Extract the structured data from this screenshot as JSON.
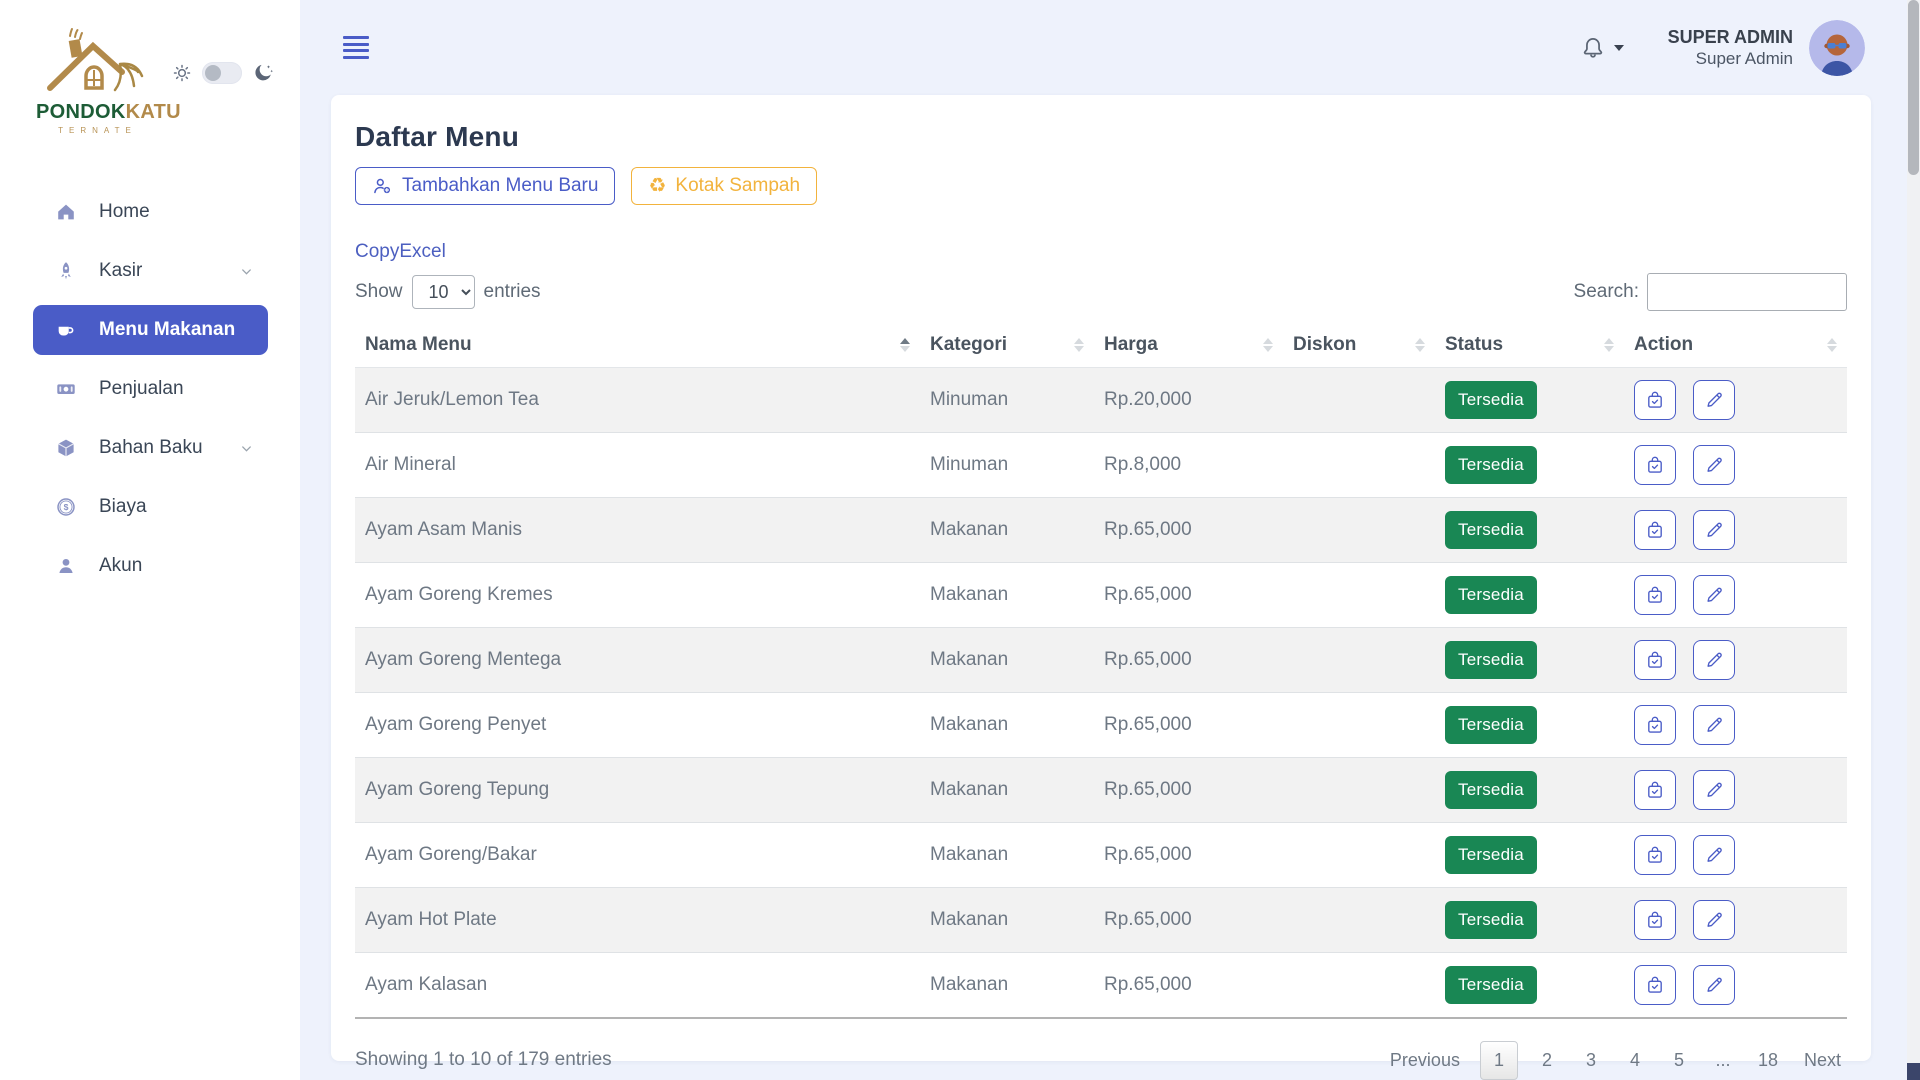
{
  "colors": {
    "accent_indigo": "#4a5cc7",
    "amber": "#f2b33d",
    "badge_green": "#198754",
    "logo_green": "#1d5c36",
    "logo_gold": "#b28a4a",
    "page_bg": "#eef2fc"
  },
  "sidebar": {
    "logo_text_primary": "PONDOK",
    "logo_text_secondary": "KATU",
    "logo_subtext": "TERNATE",
    "items": [
      {
        "label": "Home"
      },
      {
        "label": "Kasir"
      },
      {
        "label": "Menu Makanan"
      },
      {
        "label": "Penjualan"
      },
      {
        "label": "Bahan Baku"
      },
      {
        "label": "Biaya"
      },
      {
        "label": "Akun"
      }
    ]
  },
  "topbar": {
    "user_role": "SUPER ADMIN",
    "user_name": "Super Admin"
  },
  "content": {
    "title": "Daftar Menu",
    "add_button": "Tambahkan Menu Baru",
    "trash_button": "Kotak Sampah",
    "copy_link": "Copy",
    "excel_link": "Excel",
    "show_label": "Show",
    "page_length": "10",
    "entries_label": "entries",
    "search_label": "Search:",
    "search_value": ""
  },
  "table": {
    "headers": [
      "Nama Menu",
      "Kategori",
      "Harga",
      "Diskon",
      "Status",
      "Action"
    ],
    "rows": [
      {
        "name": "Air Jeruk/Lemon Tea",
        "category": "Minuman",
        "price": "Rp.20,000",
        "discount": "",
        "status": "Tersedia"
      },
      {
        "name": "Air Mineral",
        "category": "Minuman",
        "price": "Rp.8,000",
        "discount": "",
        "status": "Tersedia"
      },
      {
        "name": "Ayam Asam Manis",
        "category": "Makanan",
        "price": "Rp.65,000",
        "discount": "",
        "status": "Tersedia"
      },
      {
        "name": "Ayam Goreng Kremes",
        "category": "Makanan",
        "price": "Rp.65,000",
        "discount": "",
        "status": "Tersedia"
      },
      {
        "name": "Ayam Goreng Mentega",
        "category": "Makanan",
        "price": "Rp.65,000",
        "discount": "",
        "status": "Tersedia"
      },
      {
        "name": "Ayam Goreng Penyet",
        "category": "Makanan",
        "price": "Rp.65,000",
        "discount": "",
        "status": "Tersedia"
      },
      {
        "name": "Ayam Goreng Tepung",
        "category": "Makanan",
        "price": "Rp.65,000",
        "discount": "",
        "status": "Tersedia"
      },
      {
        "name": "Ayam Goreng/Bakar",
        "category": "Makanan",
        "price": "Rp.65,000",
        "discount": "",
        "status": "Tersedia"
      },
      {
        "name": "Ayam Hot Plate",
        "category": "Makanan",
        "price": "Rp.65,000",
        "discount": "",
        "status": "Tersedia"
      },
      {
        "name": "Ayam Kalasan",
        "category": "Makanan",
        "price": "Rp.65,000",
        "discount": "",
        "status": "Tersedia"
      }
    ]
  },
  "footer": {
    "info": "Showing 1 to 10 of 179 entries",
    "pagination": {
      "previous": "Previous",
      "pages": [
        "1",
        "2",
        "3",
        "4",
        "5",
        "...",
        "18"
      ],
      "active": "1",
      "next": "Next"
    }
  }
}
